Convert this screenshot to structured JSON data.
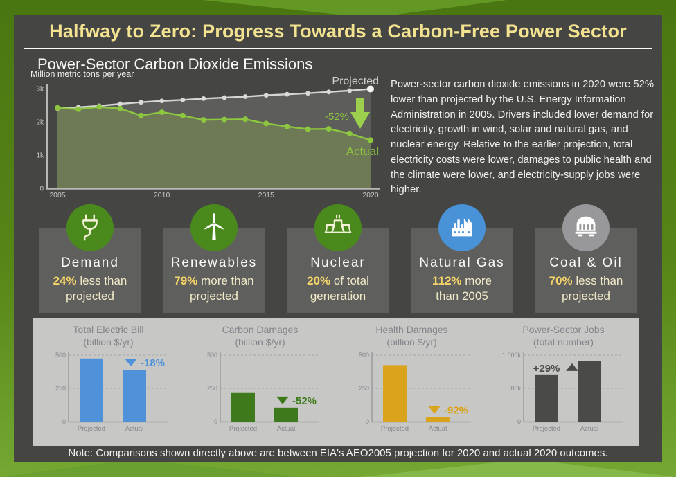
{
  "page": {
    "title": "Halfway to Zero: Progress Towards a Carbon-Free Power Sector",
    "subtitle": "Power-Sector Carbon Dioxide Emissions",
    "description": "Power-sector carbon dioxide emissions in 2020 were 52% lower than projected by the U.S. Energy Information Administration in 2005. Drivers included lower demand for electricity, growth in wind, solar and natural gas, and nuclear energy. Relative to the earlier projection, total electricity costs were lower, damages to public health and the climate were lower, and electricity-supply jobs were higher.",
    "note": "Note: Comparisons shown directly above are between EIA's AEO2005 projection for 2020 and actual 2020 outcomes."
  },
  "colors": {
    "card_bg": "#454543",
    "accent_yellow": "#f3e391",
    "stat_value_yellow": "#f5d469",
    "green_line": "#8dc63f",
    "projected_gray": "#d6d6d4",
    "blue": "#4f92d9",
    "dark_green_bar": "#3e7a1b",
    "gold_bar": "#d9a41b",
    "dark_gray_bar": "#4a4a48"
  },
  "stats": [
    {
      "icon": "plug-icon",
      "title": "Demand",
      "value": "24%",
      "text1": " less than",
      "line2": "projected",
      "circle": "#4a8a1c"
    },
    {
      "icon": "wind-turbine-icon",
      "title": "Renewables",
      "value": "79%",
      "text1": " more than",
      "line2": "projected",
      "circle": "#4a8a1c"
    },
    {
      "icon": "cooling-tower-icon",
      "title": "Nuclear",
      "value": "20%",
      "text1": " of total",
      "line2": "generation",
      "circle": "#4a8a1c"
    },
    {
      "icon": "factory-icon",
      "title": "Natural Gas",
      "value": "112%",
      "text1": " more",
      "line2": "than 2005",
      "circle": "#4992d8"
    },
    {
      "icon": "coal-car-icon",
      "title": "Coal & Oil",
      "value": "70%",
      "text1": " less than",
      "line2": "projected",
      "circle": "#98989a"
    }
  ],
  "chart_data": [
    {
      "type": "line",
      "title": "Power-Sector Carbon Dioxide Emissions",
      "ylabel": "Million metric tons per year",
      "x": [
        2005,
        2006,
        2007,
        2008,
        2009,
        2010,
        2011,
        2012,
        2013,
        2014,
        2015,
        2016,
        2017,
        2018,
        2019,
        2020
      ],
      "series": [
        {
          "name": "Projected",
          "color": "#d6d6d4",
          "area": "#5d5d5b",
          "values": [
            2400,
            2440,
            2480,
            2540,
            2590,
            2630,
            2660,
            2700,
            2730,
            2760,
            2800,
            2830,
            2860,
            2900,
            2940,
            2990
          ]
        },
        {
          "name": "Actual",
          "color": "#8dc63f",
          "area": "#6d7a55",
          "values": [
            2420,
            2380,
            2450,
            2400,
            2190,
            2290,
            2190,
            2060,
            2070,
            2080,
            1950,
            1860,
            1780,
            1790,
            1650,
            1450
          ]
        }
      ],
      "annotation": "-52%",
      "ylim": [
        0,
        3000
      ],
      "ytick_vals": [
        0,
        1000,
        2000,
        3000
      ],
      "ytick_labels": [
        "0",
        "1k",
        "2k",
        "3k"
      ],
      "xticks": [
        2005,
        2010,
        2015,
        2020
      ],
      "grid": false,
      "legend_position": "inline-right"
    },
    {
      "type": "bar",
      "title": "Total Electric Bill",
      "subtitle": "(billion $/yr)",
      "categories": [
        "Projected",
        "Actual"
      ],
      "values": [
        475,
        390
      ],
      "change": "-18%",
      "direction": "down",
      "color": "#4f92d9",
      "ylim": [
        0,
        500
      ],
      "ytick_vals": [
        0,
        250,
        500
      ],
      "ytick_labels": [
        "0",
        "250",
        "500"
      ]
    },
    {
      "type": "bar",
      "title": "Carbon Damages",
      "subtitle": "(billion $/yr)",
      "categories": [
        "Projected",
        "Actual"
      ],
      "values": [
        220,
        105
      ],
      "change": "-52%",
      "direction": "down",
      "color": "#3e7a1b",
      "ylim": [
        0,
        500
      ],
      "ytick_vals": [
        0,
        250,
        500
      ],
      "ytick_labels": [
        "0",
        "250",
        "500"
      ]
    },
    {
      "type": "bar",
      "title": "Health Damages",
      "subtitle": "(billion $/yr)",
      "categories": [
        "Projected",
        "Actual"
      ],
      "values": [
        425,
        34
      ],
      "change": "-92%",
      "direction": "down",
      "color": "#d9a41b",
      "ylim": [
        0,
        500
      ],
      "ytick_vals": [
        0,
        250,
        500
      ],
      "ytick_labels": [
        "0",
        "250",
        "500"
      ]
    },
    {
      "type": "bar",
      "title": "Power-Sector Jobs",
      "subtitle": "(total number)",
      "categories": [
        "Projected",
        "Actual"
      ],
      "values": [
        710000,
        915000
      ],
      "change": "+29%",
      "direction": "up",
      "color": "#4a4a48",
      "ylim": [
        0,
        1000000
      ],
      "ytick_vals": [
        0,
        500000,
        1000000
      ],
      "ytick_labels": [
        "0",
        "500k",
        "1 000k"
      ]
    }
  ]
}
